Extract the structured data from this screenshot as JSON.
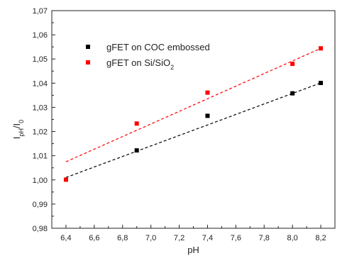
{
  "chart_data": {
    "type": "scatter",
    "title": "",
    "xlabel": "pH",
    "ylabel": {
      "base": "I",
      "sub1": "pH",
      "sep": "/I",
      "sub2": "0"
    },
    "xlim": [
      6.3,
      8.3
    ],
    "ylim": [
      0.98,
      1.07
    ],
    "xticks": [
      "6,4",
      "6,6",
      "6,8",
      "7,0",
      "7,2",
      "7,4",
      "7,6",
      "7,8",
      "8,0",
      "8,2"
    ],
    "xtick_values": [
      6.4,
      6.6,
      6.8,
      7.0,
      7.2,
      7.4,
      7.6,
      7.8,
      8.0,
      8.2
    ],
    "yticks": [
      "0,98",
      "0,99",
      "1,00",
      "1,01",
      "1,02",
      "1,03",
      "1,04",
      "1,05",
      "1,06",
      "1,07"
    ],
    "ytick_values": [
      0.98,
      0.99,
      1.0,
      1.01,
      1.02,
      1.03,
      1.04,
      1.05,
      1.06,
      1.07
    ],
    "grid": false,
    "legend_position": "top-left",
    "series": [
      {
        "name": "gFET on COC embossed",
        "color": "#000000",
        "marker": "square",
        "x": [
          6.9,
          7.4,
          8.0,
          8.2
        ],
        "y": [
          1.0122,
          1.0265,
          1.0358,
          1.0401
        ],
        "fit": {
          "x": [
            6.4,
            8.2
          ],
          "y": [
            1.001,
            1.0401
          ],
          "style": "dashed",
          "color": "#000000"
        }
      },
      {
        "name_prefix": "gFET on Si/SiO",
        "name_sub": "2",
        "color": "#ff0000",
        "marker": "square",
        "x": [
          6.4,
          6.9,
          7.4,
          8.0,
          8.2
        ],
        "y": [
          1.0001,
          1.0233,
          1.0361,
          1.048,
          1.0544
        ],
        "fit": {
          "x": [
            6.4,
            8.2
          ],
          "y": [
            1.0075,
            1.0544
          ],
          "style": "dashed",
          "color": "#ff0000"
        }
      }
    ]
  }
}
